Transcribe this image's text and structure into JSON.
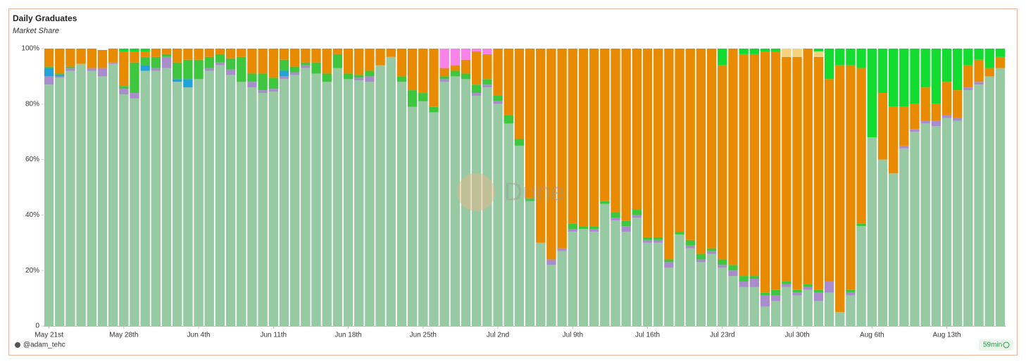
{
  "chart_data": {
    "type": "stacked_bar",
    "title": "Daily Graduates",
    "subtitle": "Market Share",
    "watermark": "Dune",
    "author": "@adam_tehc",
    "refreshed": "59min",
    "categories": [
      "May 21st",
      null,
      null,
      null,
      null,
      null,
      null,
      "May 28th",
      null,
      null,
      null,
      null,
      null,
      null,
      "Jun 4th",
      null,
      null,
      null,
      null,
      null,
      null,
      "Jun 11th",
      null,
      null,
      null,
      null,
      null,
      null,
      "Jun 18th",
      null,
      null,
      null,
      null,
      null,
      null,
      "Jun 25th",
      null,
      null,
      null,
      null,
      null,
      null,
      "Jul 2nd",
      null,
      null,
      null,
      null,
      null,
      null,
      "Jul 9th",
      null,
      null,
      null,
      null,
      null,
      null,
      "Jul 16th",
      null,
      null,
      null,
      null,
      null,
      null,
      "Jul 23rd",
      null,
      null,
      null,
      null,
      null,
      null,
      "Jul 30th",
      null,
      null,
      null,
      null,
      null,
      null,
      "Aug 6th",
      null,
      null,
      null,
      null,
      null,
      null,
      "Aug 13th",
      null,
      null,
      null,
      null,
      null
    ],
    "ylim": [
      0,
      100
    ],
    "yticks": [
      0,
      {
        "value": 20,
        "label": "20%"
      },
      {
        "value": 40,
        "label": "40%"
      },
      {
        "value": 60,
        "label": "60%"
      },
      {
        "value": 80,
        "label": "80%"
      },
      {
        "value": 100,
        "label": "100%"
      }
    ],
    "series": [
      {
        "color": "#97c9a3",
        "values": [
          87,
          89.5,
          92,
          94.5,
          92,
          90,
          94.5,
          83.5,
          82,
          92,
          92,
          93,
          88,
          86,
          89,
          92,
          94,
          90.5,
          88,
          86,
          84,
          84.5,
          89,
          90.5,
          93,
          91,
          88,
          93,
          89,
          88.5,
          88,
          94,
          97,
          88,
          79,
          81,
          77,
          88,
          90,
          89,
          83,
          86,
          80,
          73,
          65,
          45,
          30,
          22,
          27,
          34,
          35,
          34,
          44,
          38,
          34,
          39,
          30,
          30,
          21,
          33,
          28,
          23,
          26,
          21,
          18,
          14,
          14,
          7,
          9,
          14,
          11,
          13,
          9,
          12,
          5,
          11,
          36,
          68,
          60,
          55,
          64,
          70,
          73,
          72,
          75,
          74,
          85,
          87,
          90,
          93
        ]
      },
      {
        "color": "#a98ccb",
        "values": [
          3,
          0.5,
          1,
          0,
          1,
          3,
          0.5,
          2,
          2,
          0,
          1,
          4,
          0,
          0,
          0,
          1,
          1,
          2,
          0,
          2,
          1,
          1,
          1,
          1,
          1,
          0,
          0,
          0,
          0,
          1,
          2,
          0,
          0,
          0,
          0,
          0,
          0,
          1,
          0,
          0,
          1,
          1,
          1,
          0,
          0,
          0,
          0,
          2,
          1,
          1,
          0,
          1,
          0,
          1,
          2,
          1,
          1,
          1,
          2,
          0,
          1,
          1,
          1,
          1,
          2,
          2,
          3,
          4,
          2,
          1,
          1,
          1,
          3,
          4,
          0,
          1,
          0,
          0,
          0,
          0,
          1,
          1,
          1,
          2,
          1,
          1,
          1,
          1,
          0,
          0
        ]
      },
      {
        "color": "#1fa3da",
        "values": [
          3,
          0.5,
          0,
          0,
          0,
          0,
          0,
          0,
          0,
          2,
          0,
          0,
          1,
          3,
          0,
          0,
          0,
          0,
          0,
          0,
          0,
          0,
          2,
          0,
          0,
          0,
          0,
          0,
          0,
          0,
          0,
          0,
          0,
          0,
          0,
          0,
          0,
          0,
          0,
          0,
          0,
          0,
          0,
          0,
          0,
          0,
          0,
          0,
          0,
          0,
          0,
          0,
          0,
          0,
          0,
          0,
          0,
          0,
          0,
          0,
          0,
          0,
          0,
          0,
          0,
          0,
          0,
          0,
          0,
          0,
          0,
          0,
          0,
          0,
          0,
          0,
          0,
          0,
          0,
          0,
          0,
          0,
          0,
          0,
          0,
          0,
          0,
          0,
          0,
          0
        ]
      },
      {
        "color": "#3ec63e",
        "values": [
          0.5,
          0.5,
          0.5,
          0,
          0,
          0,
          0,
          1,
          11,
          3,
          4,
          1,
          6,
          7,
          7,
          4,
          3,
          4,
          9,
          3,
          6,
          4,
          4,
          2,
          1,
          4,
          3,
          5,
          2,
          1,
          2,
          0,
          0,
          2,
          6,
          3,
          2,
          1,
          2,
          2,
          3,
          2,
          2,
          3,
          2.5,
          1,
          0,
          0,
          0,
          2,
          1,
          1,
          1,
          2,
          2,
          2,
          1,
          1,
          1,
          1,
          2,
          2,
          1,
          2,
          2,
          2,
          1,
          1,
          2,
          1,
          1,
          1,
          1,
          0,
          0,
          1,
          1,
          0,
          0,
          0,
          0,
          0,
          0,
          0,
          0,
          0,
          0,
          0,
          0,
          0
        ]
      },
      {
        "color": "#e98b02",
        "values": [
          6.5,
          9,
          6.5,
          5.5,
          7,
          6.5,
          5,
          12.5,
          4,
          2,
          3,
          2,
          5,
          4,
          4,
          3,
          2,
          3.5,
          3,
          9,
          9,
          10.5,
          4,
          6.5,
          5,
          5,
          9,
          2,
          9,
          9.5,
          8,
          6,
          3,
          10,
          15,
          16,
          21,
          3,
          2,
          5,
          12,
          9,
          17,
          24,
          32.5,
          54,
          70,
          76,
          72,
          63,
          64,
          64,
          55,
          59,
          62,
          58,
          68,
          68,
          76,
          66,
          69,
          74,
          72,
          70,
          78,
          80,
          80,
          87,
          86,
          81,
          84,
          85,
          84,
          73,
          89,
          81,
          56,
          0,
          24,
          24,
          14,
          9,
          12,
          6,
          12,
          10,
          8,
          8,
          3,
          4
        ]
      },
      {
        "color": "#f783e8",
        "values": [
          0,
          0,
          0,
          0,
          0,
          0,
          0,
          0,
          0,
          0,
          0,
          0,
          0,
          0,
          0,
          0,
          0,
          0,
          0,
          0,
          0,
          0,
          0,
          0,
          0,
          0,
          0,
          0,
          0,
          0,
          0,
          0,
          0,
          0,
          0,
          0,
          0,
          7,
          6,
          4,
          1,
          2,
          0,
          0,
          0,
          0,
          0,
          0,
          0,
          0,
          0,
          0,
          0,
          0,
          0,
          0,
          0,
          0,
          0,
          0,
          0,
          0,
          0,
          0,
          0,
          0,
          0,
          0,
          0,
          0,
          0,
          0,
          0,
          0,
          0,
          0,
          0,
          0,
          0,
          0,
          0,
          0,
          0,
          0,
          0,
          0,
          0,
          0,
          0,
          0
        ]
      },
      {
        "color": "#f4d37c",
        "values": [
          0,
          0,
          0,
          0,
          0,
          0,
          0,
          0,
          0,
          0,
          0,
          0,
          0,
          0,
          0,
          0,
          0,
          0,
          0,
          0,
          0,
          0,
          0,
          0,
          0,
          0,
          0,
          0,
          0,
          0,
          0,
          0,
          0,
          0,
          0,
          0,
          0,
          0,
          0,
          0,
          0,
          0,
          0,
          0,
          0,
          0,
          0,
          0,
          0,
          0,
          0,
          0,
          0,
          0,
          0,
          0,
          0,
          0,
          0,
          0,
          0,
          0,
          0,
          0,
          0,
          0,
          0,
          0,
          0,
          3,
          3,
          0,
          2,
          0,
          0,
          0,
          0,
          0,
          0,
          0,
          0,
          0,
          0,
          0,
          0,
          0,
          0,
          0,
          0,
          0
        ]
      },
      {
        "color": "#12dc30",
        "values": [
          0,
          0,
          0,
          0,
          0,
          0,
          0,
          1,
          1,
          1,
          0,
          0,
          0,
          0,
          0,
          0,
          0,
          0,
          0,
          0,
          0,
          0,
          0,
          0,
          0,
          0,
          0,
          0,
          0,
          0,
          0,
          0,
          0,
          0,
          0,
          0,
          0,
          0,
          0,
          0,
          0,
          0,
          0,
          0,
          0,
          0,
          0,
          0,
          0,
          0,
          0,
          0,
          0,
          0,
          0,
          0,
          0,
          0,
          0,
          0,
          0,
          0,
          0,
          6,
          0,
          2,
          2,
          1,
          1,
          0,
          0,
          0,
          1,
          11,
          6,
          6,
          7,
          32,
          16,
          21,
          21,
          20,
          14,
          20,
          12,
          15,
          6,
          4,
          7,
          3
        ]
      }
    ]
  }
}
